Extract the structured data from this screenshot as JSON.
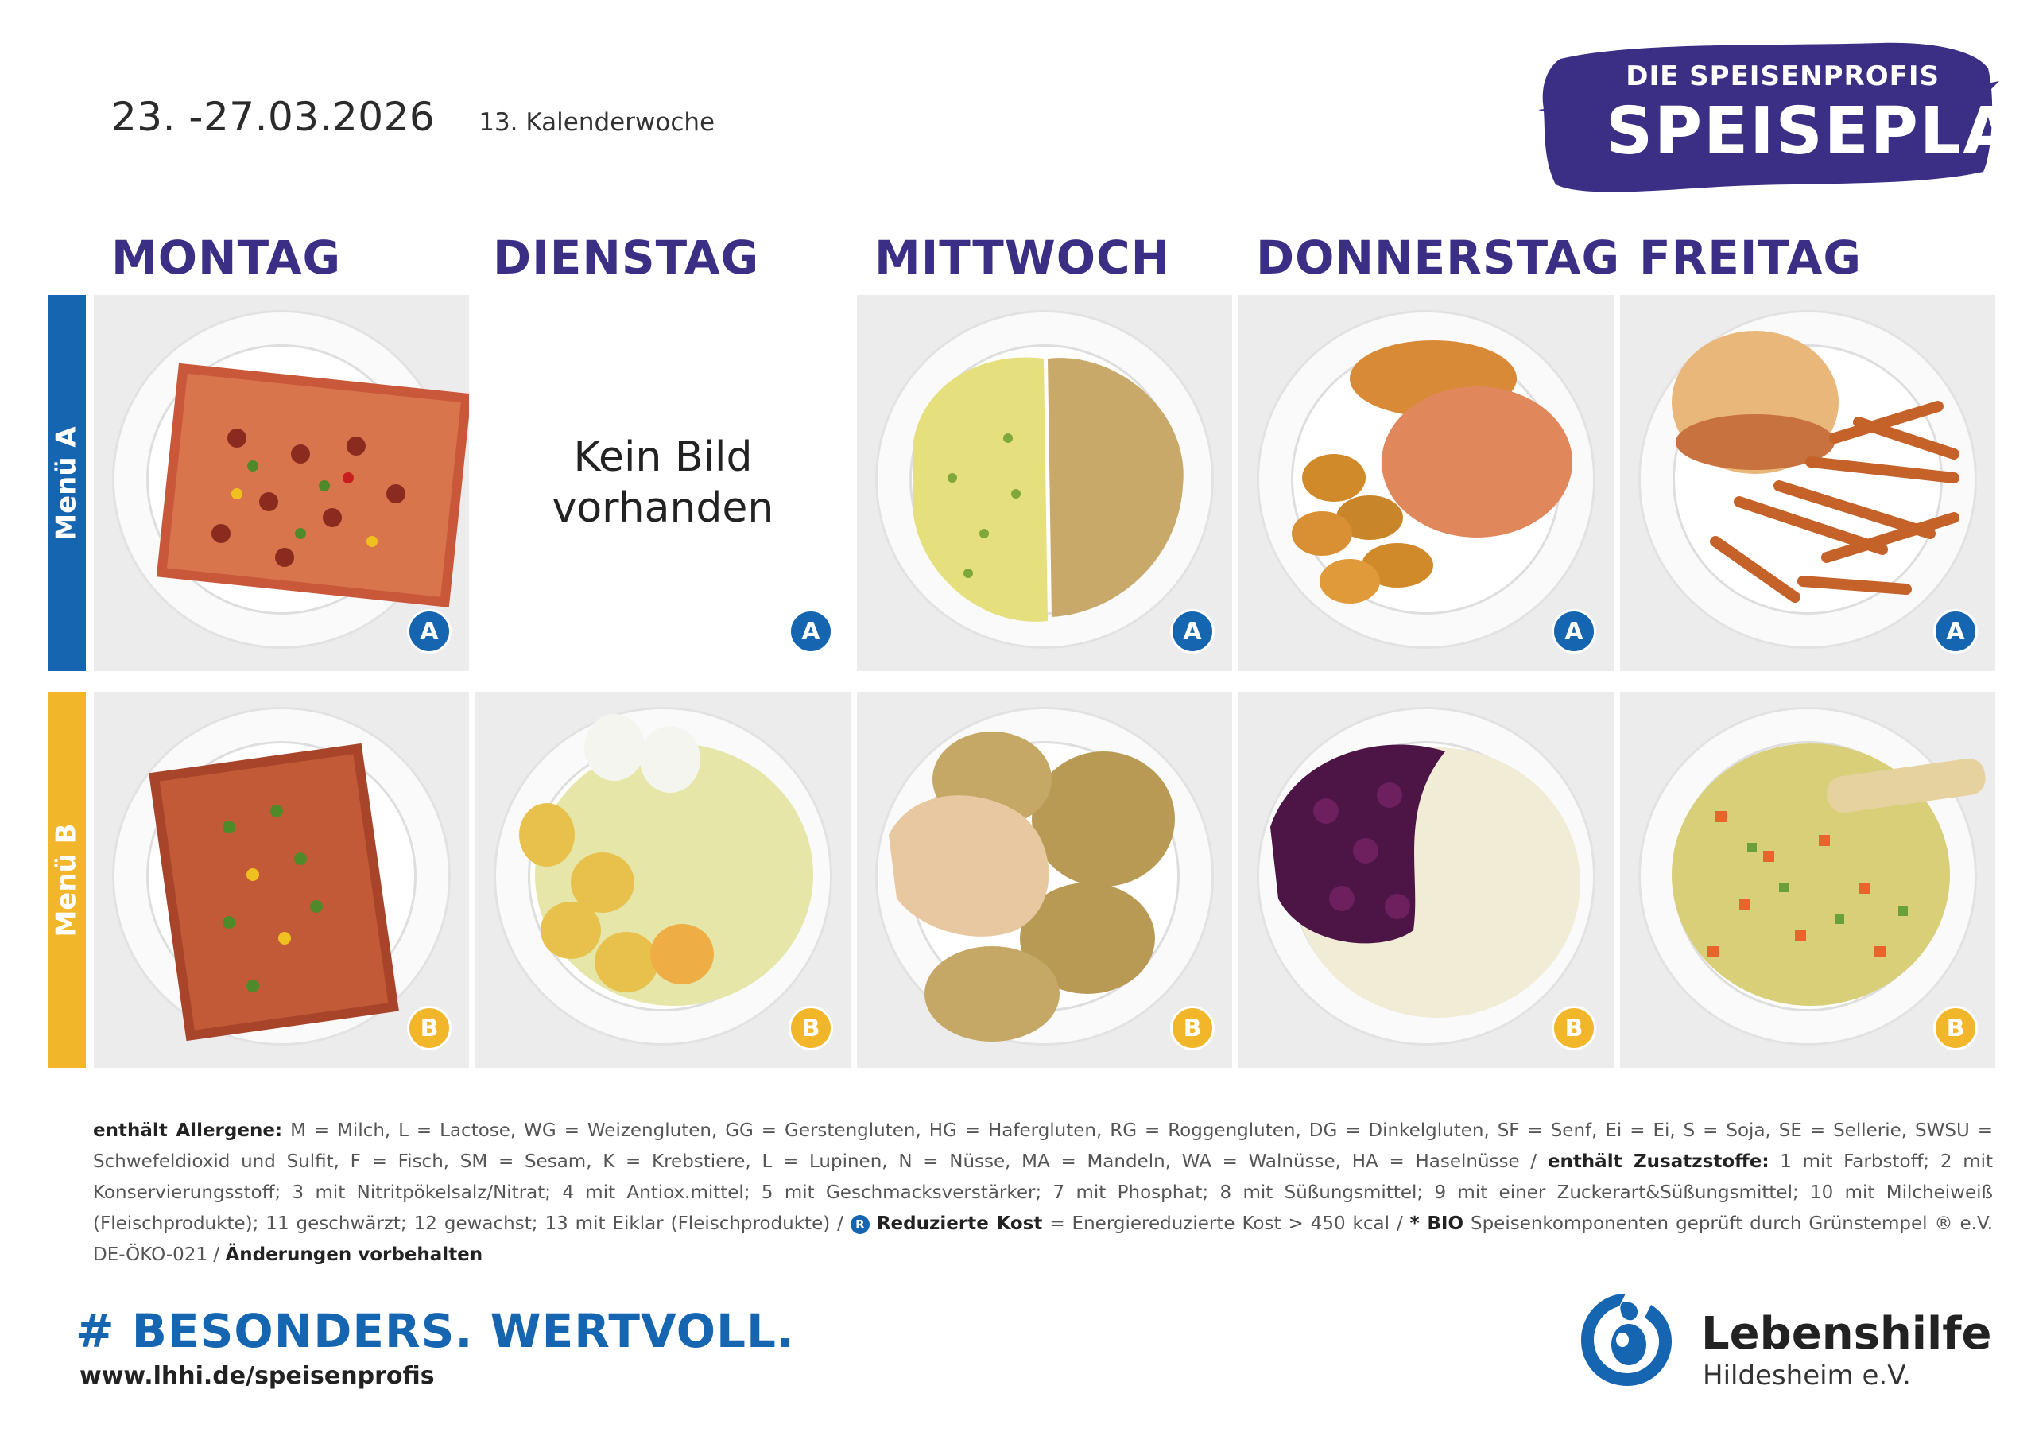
{
  "header": {
    "date_range": "23. -27.03.2026",
    "calendar_week": "13. Kalenderwoche"
  },
  "brand": {
    "subtitle": "DIE SPEISENPROFIS",
    "title": "SPEISEPLAN",
    "color": "#3b2f85"
  },
  "days": [
    "MONTAG",
    "DIENSTAG",
    "MITTWOCH",
    "DONNERSTAG",
    "FREITAG"
  ],
  "menus": {
    "a": {
      "label": "Menü A",
      "badge": "A",
      "color": "#1565b0"
    },
    "b": {
      "label": "Menü B",
      "badge": "B",
      "color": "#f2b62a"
    }
  },
  "no_image": {
    "line1": "Kein Bild",
    "line2": "vorhanden"
  },
  "legend": {
    "allergens_label": "enthält Allergene:",
    "allergens_text": "M = Milch, L = Lactose, WG = Weizengluten, GG = Gerstengluten, HG = Hafergluten, RG = Roggengluten, DG = Dinkelgluten, SF = Senf, Ei = Ei, S = Soja, SE = Sellerie, SWSU = Schwefeldioxid und Sulfit, F = Fisch, SM = Sesam, K = Krebstiere, L = Lupinen, N = Nüsse, MA = Mandeln, WA = Walnüsse, HA = Haselnüsse /",
    "additives_label": "enthält Zusatzstoffe:",
    "additives_text": "1 mit Farbstoff; 2 mit Konservierungsstoff; 3 mit Nitritpökelsalz/Nitrat; 4 mit Antiox.mittel; 5 mit Geschmacksverstärker; 7 mit Phosphat; 8 mit Süßungsmittel; 9 mit einer Zuckerart&Süßungsmittel; 10 mit Milcheiweiß (Fleischprodukte); 11 geschwärzt; 12 gewachst; 13 mit Eiklar (Fleischprodukte) /",
    "reduced_symbol": "R",
    "reduced_label": "Reduzierte Kost",
    "reduced_text": "= Energiereduzierte Kost > 450 kcal /",
    "bio_label": "* BIO",
    "bio_text": "Speisenkomponenten geprüft durch Grünstempel ® e.V. DE-ÖKO-021 /",
    "changes": "Änderungen vorbehalten"
  },
  "footer": {
    "hashtag": "# BESONDERS. WERTVOLL.",
    "website": "www.lhhi.de/speisenprofis",
    "org_name": "Lebenshilfe",
    "org_sub": "Hildesheim e.V."
  }
}
